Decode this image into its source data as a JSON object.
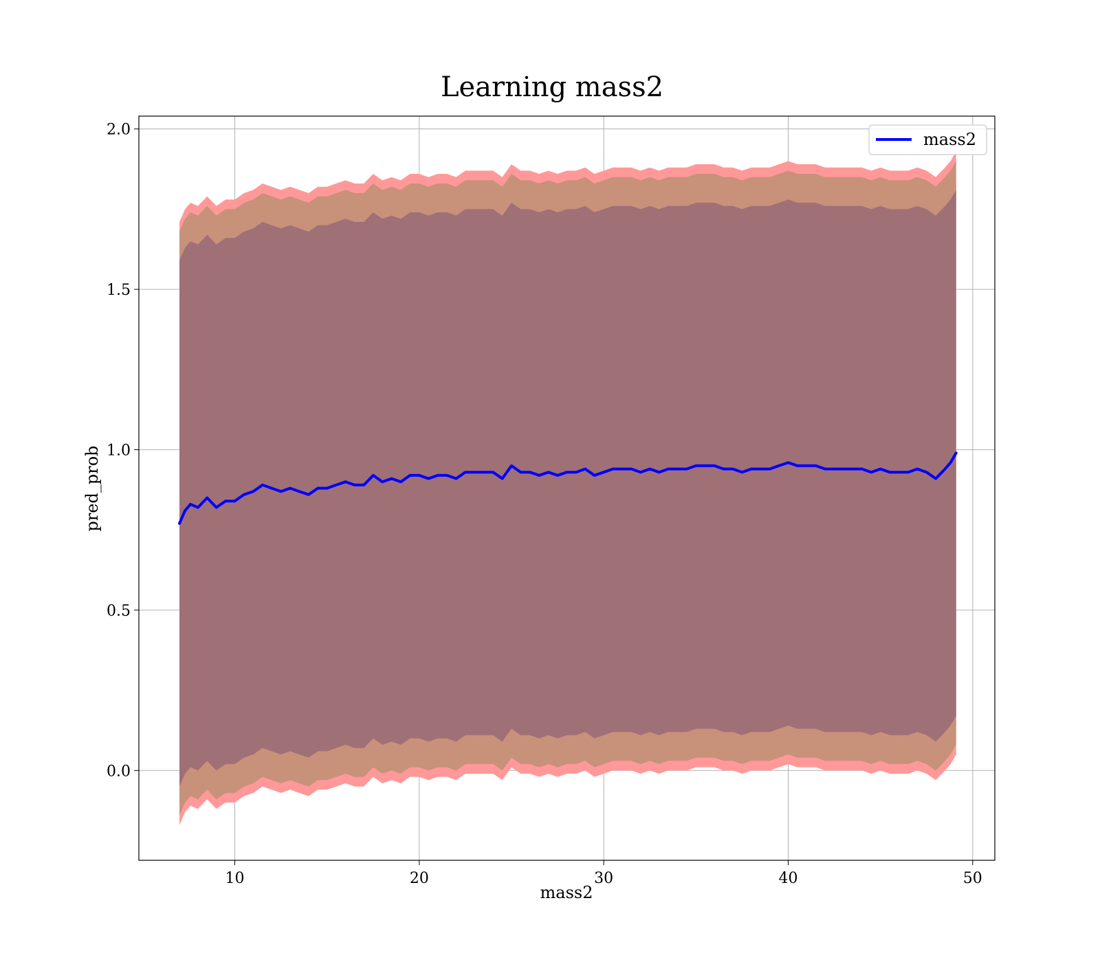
{
  "chart_data": {
    "type": "line",
    "title": "Learning mass2",
    "xlabel": "mass2",
    "ylabel": "pred_prob",
    "xlim": [
      4.8,
      51.2
    ],
    "ylim": [
      -0.28,
      2.04
    ],
    "xticks": [
      10,
      20,
      30,
      40,
      50
    ],
    "yticks": [
      0.0,
      0.5,
      1.0,
      1.5,
      2.0
    ],
    "ytick_labels": [
      "0.0",
      "0.5",
      "1.0",
      "1.5",
      "2.0"
    ],
    "grid": true,
    "legend": {
      "position": "top-right",
      "entries": [
        "mass2"
      ]
    },
    "colors": {
      "line": "#0000ff",
      "band_outer": "#ff9999",
      "band_middle": "#c8917a",
      "band_inner": "#a07077"
    },
    "series": [
      {
        "name": "mass2",
        "x": [
          7.0,
          7.3,
          7.6,
          8.0,
          8.5,
          9.0,
          9.5,
          10.0,
          10.5,
          11.0,
          11.5,
          12.0,
          12.5,
          13.0,
          13.5,
          14.0,
          14.5,
          15.0,
          15.5,
          16.0,
          16.5,
          17.0,
          17.5,
          18.0,
          18.5,
          19.0,
          19.5,
          20.0,
          20.5,
          21.0,
          21.5,
          22.0,
          22.5,
          23.0,
          23.5,
          24.0,
          24.5,
          25.0,
          25.5,
          26.0,
          26.5,
          27.0,
          27.5,
          28.0,
          28.5,
          29.0,
          29.5,
          30.0,
          30.5,
          31.0,
          31.5,
          32.0,
          32.5,
          33.0,
          33.5,
          34.0,
          34.5,
          35.0,
          35.5,
          36.0,
          36.5,
          37.0,
          37.5,
          38.0,
          38.5,
          39.0,
          39.5,
          40.0,
          40.5,
          41.0,
          41.5,
          42.0,
          42.5,
          43.0,
          43.5,
          44.0,
          44.5,
          45.0,
          45.5,
          46.0,
          46.5,
          47.0,
          47.5,
          48.0,
          48.5,
          48.8,
          49.1
        ],
        "y": [
          0.77,
          0.81,
          0.83,
          0.82,
          0.85,
          0.82,
          0.84,
          0.84,
          0.86,
          0.87,
          0.89,
          0.88,
          0.87,
          0.88,
          0.87,
          0.86,
          0.88,
          0.88,
          0.89,
          0.9,
          0.89,
          0.89,
          0.92,
          0.9,
          0.91,
          0.9,
          0.92,
          0.92,
          0.91,
          0.92,
          0.92,
          0.91,
          0.93,
          0.93,
          0.93,
          0.93,
          0.91,
          0.95,
          0.93,
          0.93,
          0.92,
          0.93,
          0.92,
          0.93,
          0.93,
          0.94,
          0.92,
          0.93,
          0.94,
          0.94,
          0.94,
          0.93,
          0.94,
          0.93,
          0.94,
          0.94,
          0.94,
          0.95,
          0.95,
          0.95,
          0.94,
          0.94,
          0.93,
          0.94,
          0.94,
          0.94,
          0.95,
          0.96,
          0.95,
          0.95,
          0.95,
          0.94,
          0.94,
          0.94,
          0.94,
          0.94,
          0.93,
          0.94,
          0.93,
          0.93,
          0.93,
          0.94,
          0.93,
          0.91,
          0.94,
          0.96,
          0.99
        ]
      }
    ],
    "bands": [
      {
        "name": "outer",
        "half_width": 0.94
      },
      {
        "name": "middle",
        "half_width": 0.91
      },
      {
        "name": "inner",
        "half_width": 0.82
      }
    ]
  }
}
